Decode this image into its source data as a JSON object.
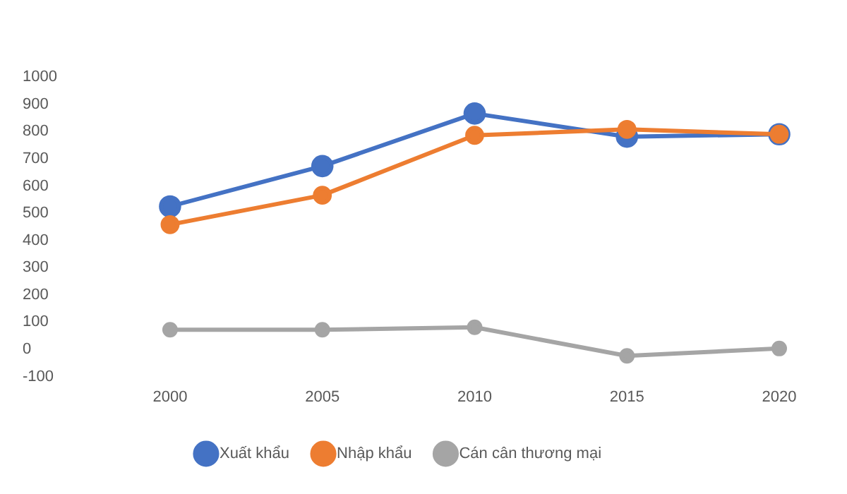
{
  "chart_data": {
    "type": "line",
    "categories": [
      "2000",
      "2005",
      "2010",
      "2015",
      "2020"
    ],
    "series": [
      {
        "name": "Xuất khẩu",
        "color": "#4472c4",
        "values": [
          525,
          673,
          866,
          781,
          790
        ]
      },
      {
        "name": "Nhập khẩu",
        "color": "#ed7d31",
        "values": [
          458,
          566,
          786,
          808,
          790
        ]
      },
      {
        "name": "Cán cân thương mại",
        "color": "#a5a5a5",
        "values": [
          72,
          72,
          81,
          -24,
          3
        ]
      }
    ],
    "ylim": [
      -100,
      1000
    ],
    "yticks": [
      -100,
      0,
      100,
      200,
      300,
      400,
      500,
      600,
      700,
      800,
      900,
      1000
    ],
    "grid": false,
    "legend": "bottom",
    "marker": "circle",
    "line_style": "solid"
  }
}
